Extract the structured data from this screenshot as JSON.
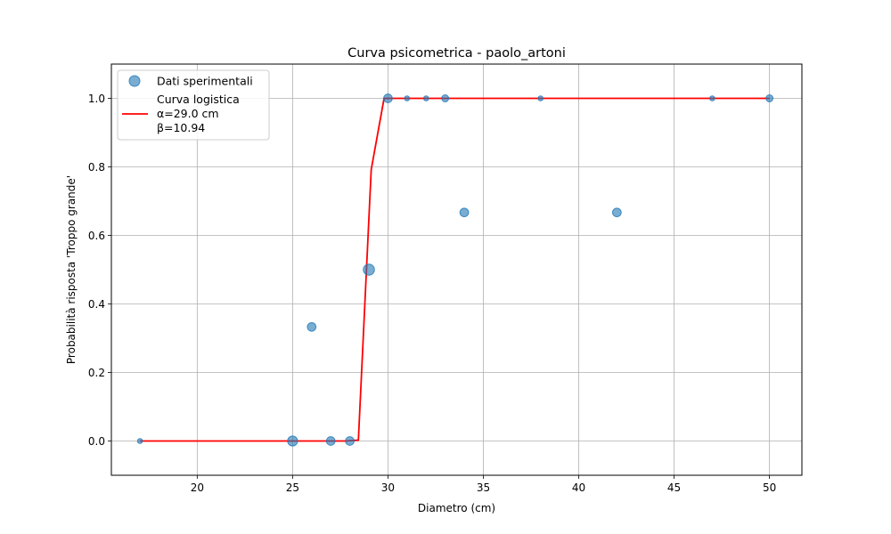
{
  "chart_data": {
    "type": "scatter",
    "title": "Curva psicometrica - paolo_artoni",
    "xlabel": "Diametro (cm)",
    "ylabel": "Probabilità risposta 'Troppo grande'",
    "xlim": [
      15.5,
      51.7
    ],
    "ylim": [
      -0.1,
      1.1
    ],
    "xticks": [
      20,
      25,
      30,
      35,
      40,
      45,
      50
    ],
    "yticks": [
      0.0,
      0.2,
      0.4,
      0.6,
      0.8,
      1.0
    ],
    "xtick_labels": [
      "20",
      "25",
      "30",
      "35",
      "40",
      "45",
      "50"
    ],
    "ytick_labels": [
      "0.0",
      "0.2",
      "0.4",
      "0.6",
      "0.8",
      "1.0"
    ],
    "grid": true,
    "legend_position": "top-left",
    "series": [
      {
        "name": "Dati sperimentali",
        "kind": "scatter",
        "color": "#1f77b4",
        "points": [
          {
            "x": 17,
            "y": 0.0,
            "n": 1
          },
          {
            "x": 25,
            "y": 0.0,
            "n": 4
          },
          {
            "x": 26,
            "y": 0.333,
            "n": 3
          },
          {
            "x": 27,
            "y": 0.0,
            "n": 3
          },
          {
            "x": 28,
            "y": 0.0,
            "n": 3
          },
          {
            "x": 29,
            "y": 0.5,
            "n": 5
          },
          {
            "x": 30,
            "y": 1.0,
            "n": 3
          },
          {
            "x": 31,
            "y": 1.0,
            "n": 1
          },
          {
            "x": 32,
            "y": 1.0,
            "n": 1
          },
          {
            "x": 33,
            "y": 1.0,
            "n": 2
          },
          {
            "x": 34,
            "y": 0.667,
            "n": 3
          },
          {
            "x": 38,
            "y": 1.0,
            "n": 1
          },
          {
            "x": 42,
            "y": 0.667,
            "n": 3
          },
          {
            "x": 47,
            "y": 1.0,
            "n": 1
          },
          {
            "x": 50,
            "y": 1.0,
            "n": 2
          }
        ]
      },
      {
        "name": "Curva logistica",
        "name_lines": [
          "Curva logistica",
          "α=29.0 cm",
          "β=10.94"
        ],
        "kind": "line",
        "color": "#ff0000",
        "alpha": 29.0,
        "beta": 10.94,
        "x_range": [
          17,
          50
        ]
      }
    ]
  }
}
